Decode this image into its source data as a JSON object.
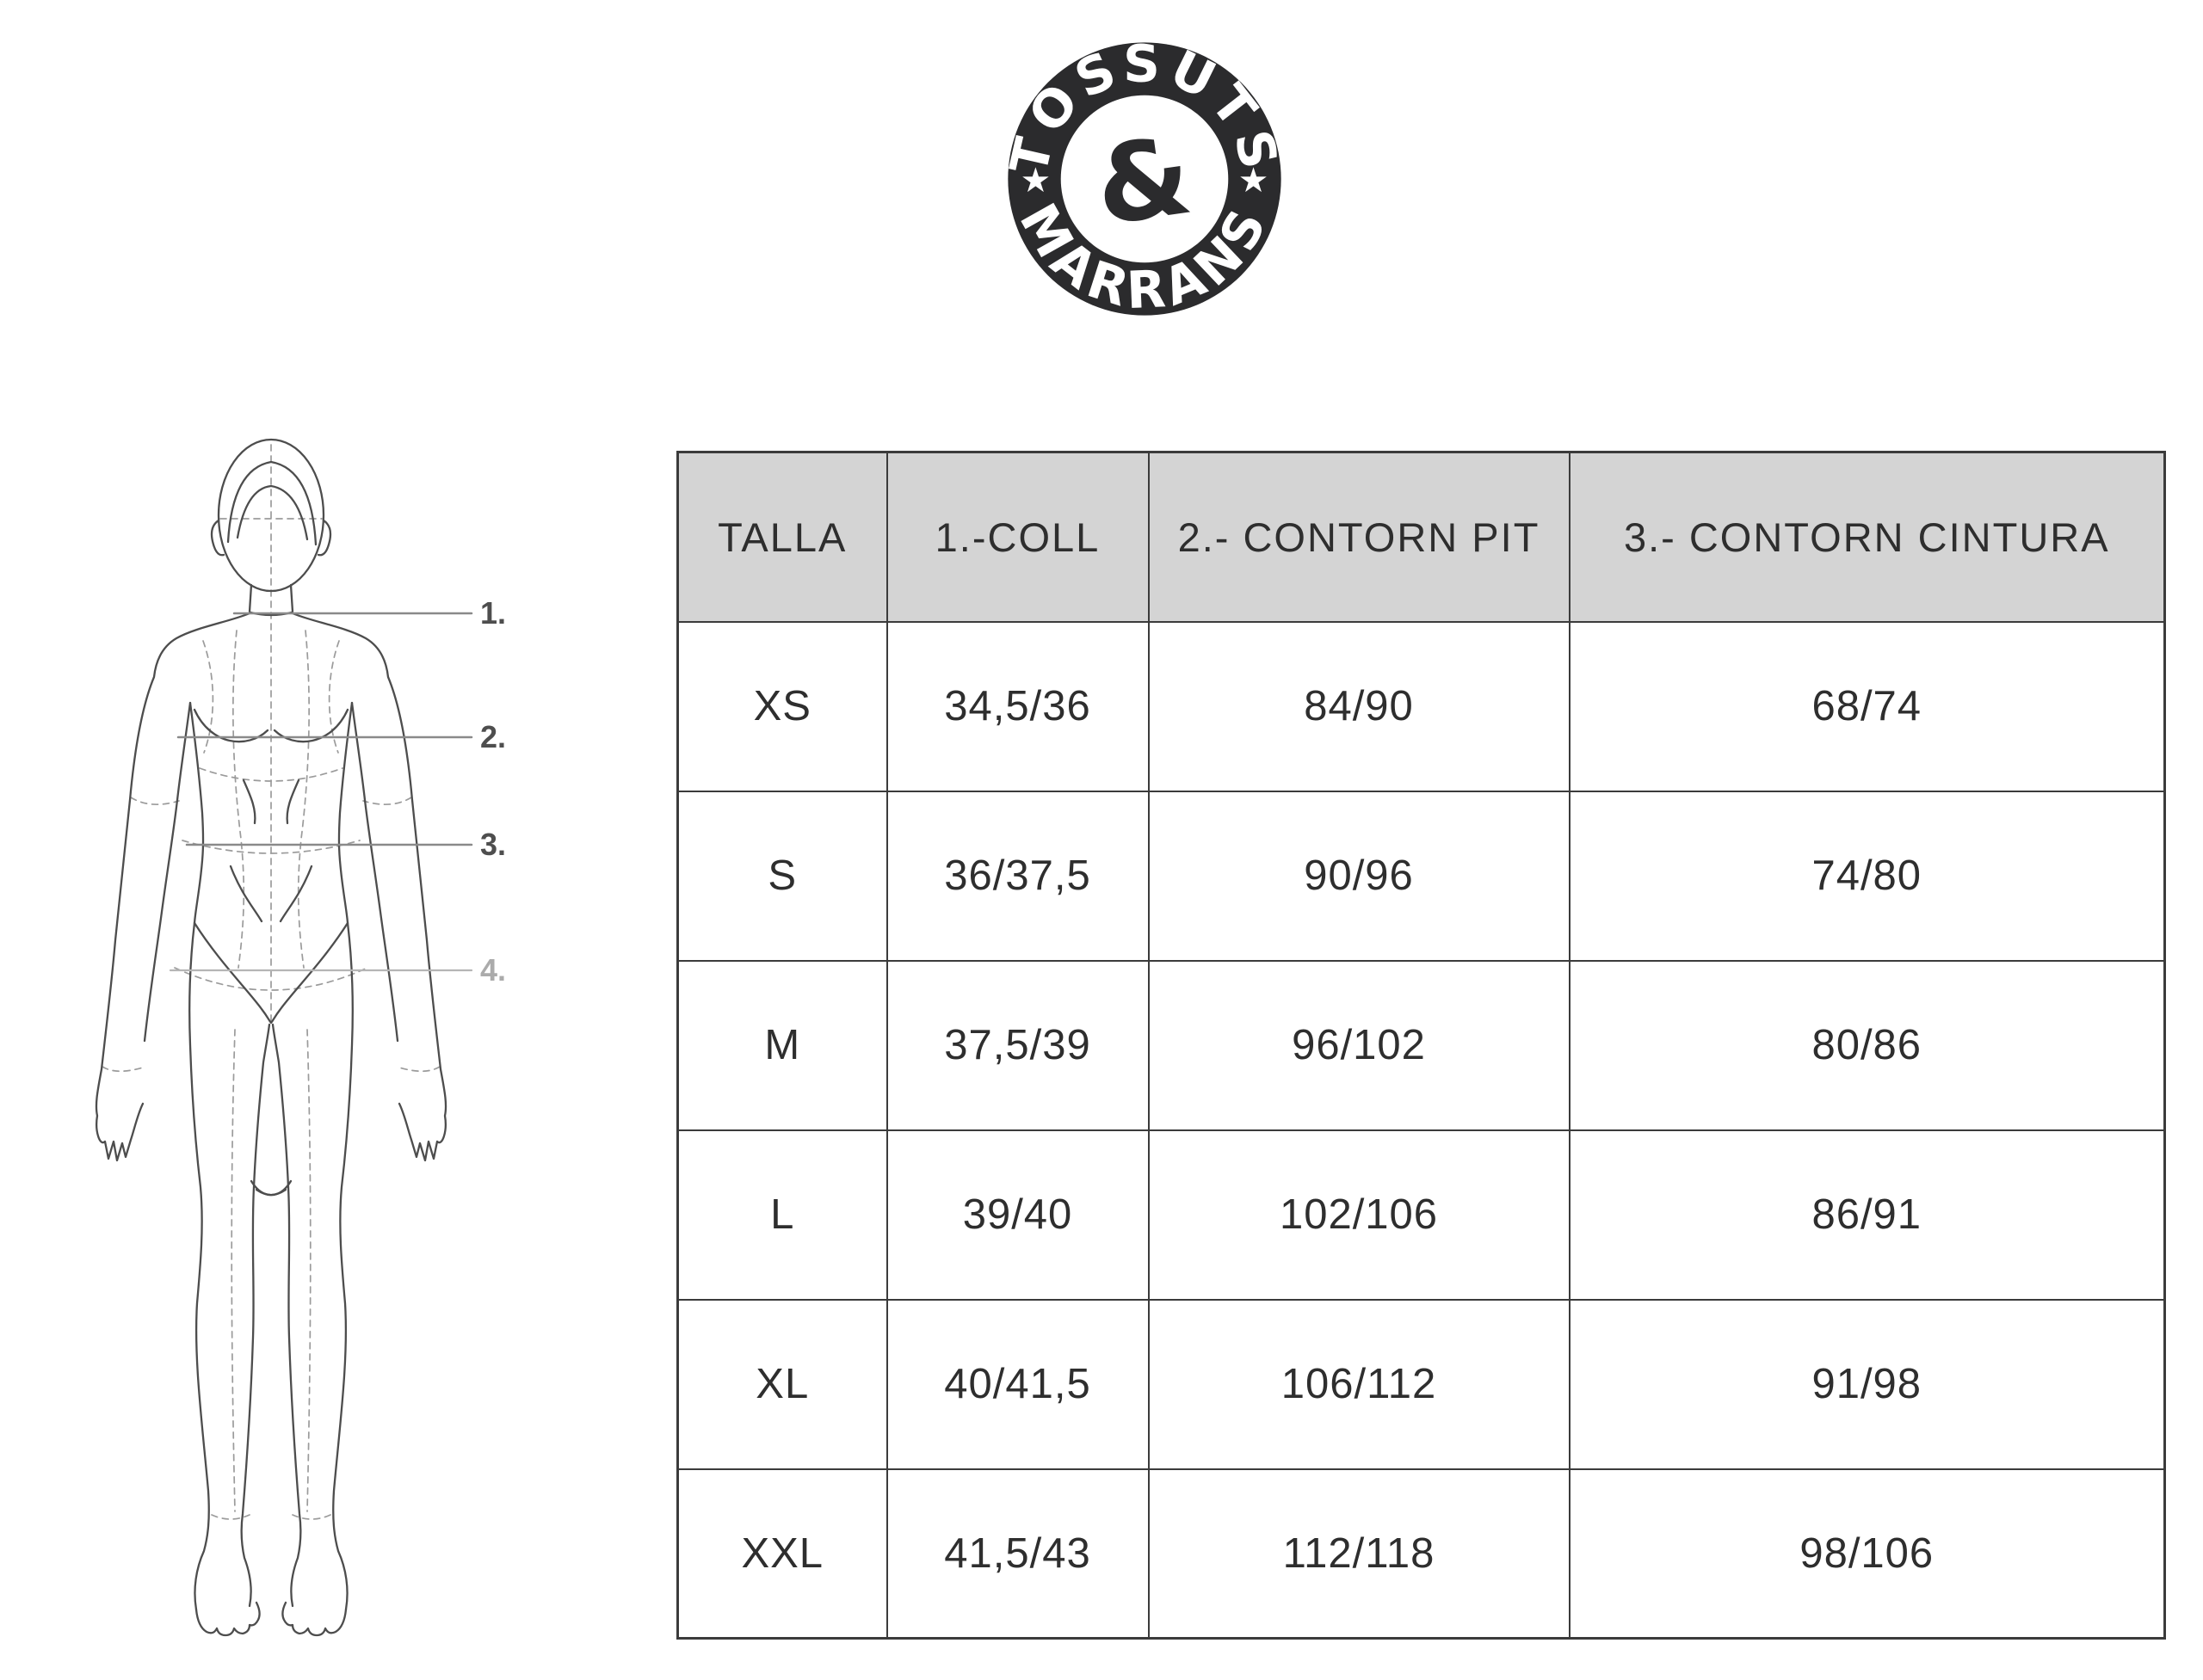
{
  "logo": {
    "top_text": "TOSSUTS",
    "ampersand": "&",
    "bottom_text": "MARRANS",
    "left_star": "★",
    "right_star": "★"
  },
  "figure": {
    "labels": [
      "1.",
      "2.",
      "3.",
      "4."
    ]
  },
  "table": {
    "headers": [
      "TALLA",
      "1.-COLL",
      "2.- CONTORN PIT",
      "3.- CONTORN CINTURA"
    ],
    "rows": [
      [
        "XS",
        "34,5/36",
        "84/90",
        "68/74"
      ],
      [
        "S",
        "36/37,5",
        "90/96",
        "74/80"
      ],
      [
        "M",
        "37,5/39",
        "96/102",
        "80/86"
      ],
      [
        "L",
        "39/40",
        "102/106",
        "86/91"
      ],
      [
        "XL",
        "40/41,5",
        "106/112",
        "91/98"
      ],
      [
        "XXL",
        "41,5/43",
        "112/118",
        "98/106"
      ]
    ]
  },
  "colors": {
    "header_bg": "#d4d4d4",
    "table_border": "#3b3b3b",
    "logo_ink": "#2b2b2d",
    "outline_gray": "#4d4d4d",
    "dash_gray": "#9b9b9b",
    "measure_line": "#8a8a8a",
    "measure_line_light": "#b5b5b5",
    "label_dark": "#4e4e4e",
    "label_light": "#ababab"
  }
}
